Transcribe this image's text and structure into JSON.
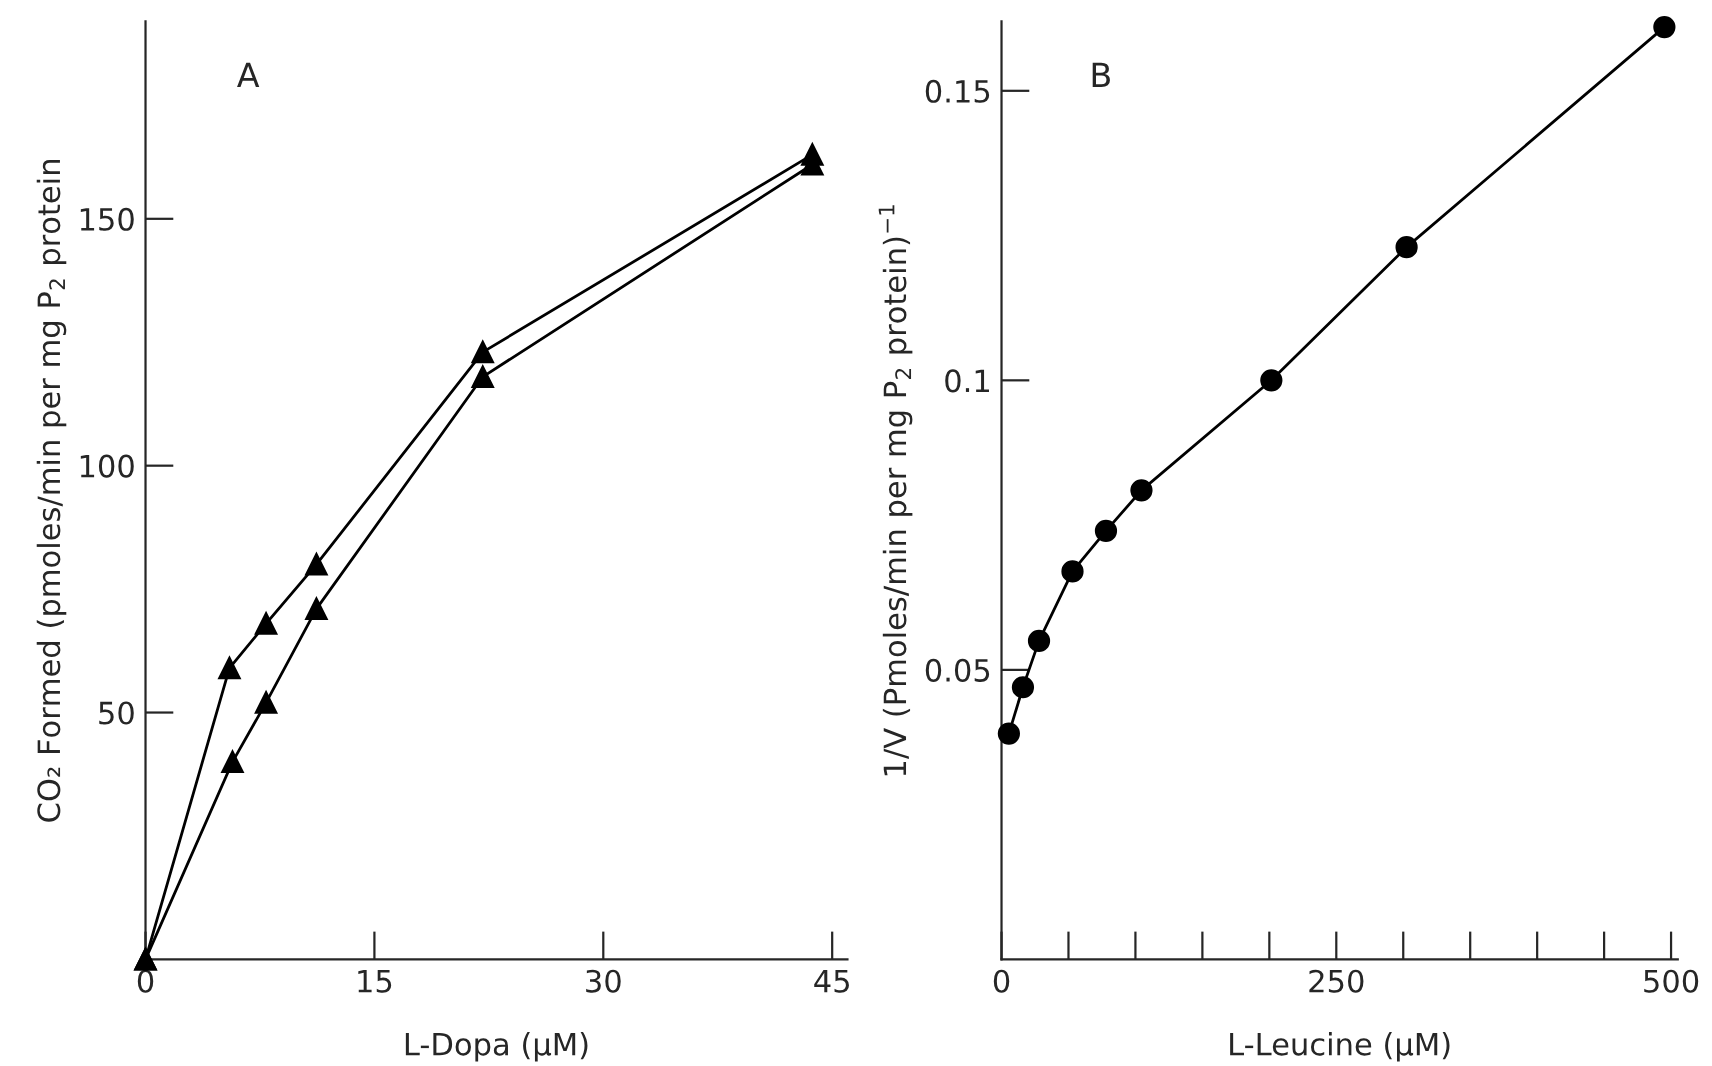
{
  "chart_data": [
    {
      "type": "line",
      "xlabel": "L-Dopa (µM)",
      "ylabel": "CO₂ Formed (pmoles/min per mg P$_{2}$ protein",
      "annotations": [
        "A"
      ],
      "xlim": [
        0,
        46
      ],
      "ylim": [
        0,
        190
      ],
      "xticks": [
        0,
        15,
        30,
        45
      ],
      "yticks": [
        50,
        100,
        150
      ],
      "grid": false,
      "legend": false,
      "series": [
        {
          "x": [
            0,
            5.5,
            7.9,
            11.2,
            22.1,
            43.7
          ],
          "values": [
            0,
            59,
            68,
            80,
            123,
            163
          ],
          "color": "#000000",
          "marker": "triangle"
        },
        {
          "x": [
            0,
            5.7,
            7.9,
            11.2,
            22.1,
            43.7
          ],
          "values": [
            0,
            40,
            52,
            71,
            118,
            161
          ],
          "color": "#000000",
          "marker": "triangle"
        }
      ]
    },
    {
      "type": "line",
      "xlabel": "L-Leucine (µM)",
      "ylabel": "1/V (Pmoles/min per mg P$_{2}$ protein)$^{−1}$",
      "annotations": [
        "B"
      ],
      "xlim": [
        0,
        505
      ],
      "ylim": [
        0,
        0.162
      ],
      "xticks": [
        0,
        {
          "value": 50,
          "label": null
        },
        {
          "value": 100,
          "label": null
        },
        {
          "value": 150,
          "label": null
        },
        {
          "value": 200,
          "label": null
        },
        250,
        {
          "value": 300,
          "label": null
        },
        {
          "value": 350,
          "label": null
        },
        {
          "value": 400,
          "label": null
        },
        {
          "value": 450,
          "label": null
        },
        500
      ],
      "yticks": [
        0.05,
        0.1,
        0.15
      ],
      "grid": false,
      "legend": false,
      "series": [
        {
          "x": [
            5.5,
            16,
            28,
            53,
            78,
            104.5,
            201.5,
            302.5,
            495
          ],
          "values": [
            0.039,
            0.047,
            0.055,
            0.067,
            0.074,
            0.081,
            0.1,
            0.123,
            0.161
          ],
          "color": "#000000",
          "marker": "circle"
        }
      ]
    }
  ]
}
